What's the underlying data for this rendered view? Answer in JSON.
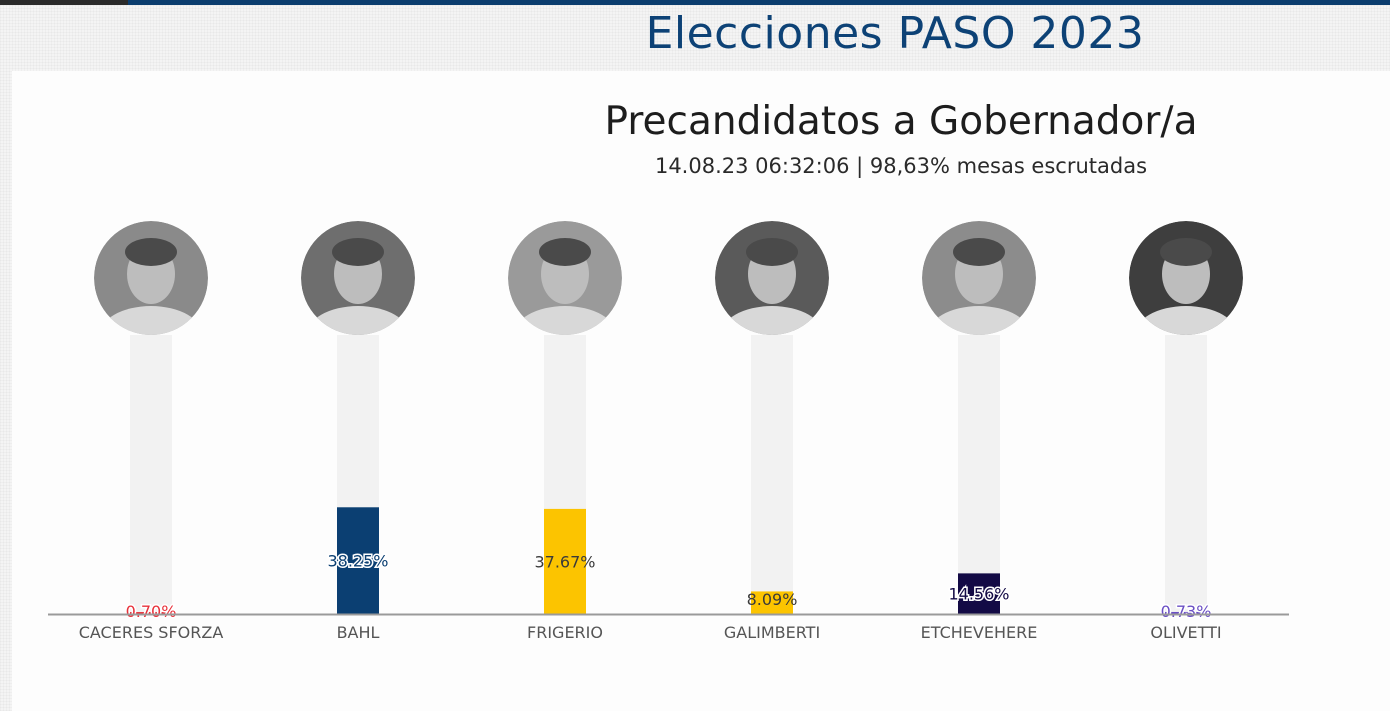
{
  "header": {
    "title": "Elecciones PASO 2023"
  },
  "chart_data": {
    "type": "bar",
    "title": "Precandidatos a Gobernador/a",
    "subtitle": "14.08.23 06:32:06 | 98,63% mesas escrutadas",
    "categories": [
      "CACERES SFORZA",
      "BAHL",
      "FRIGERIO",
      "GALIMBERTI",
      "ETCHEVEHERE",
      "OLIVETTI"
    ],
    "values": [
      0.7,
      38.25,
      37.67,
      8.09,
      14.56,
      0.73
    ],
    "value_labels": [
      "0.70%",
      "38.25%",
      "37.67%",
      "8.09%",
      "14.56%",
      "0.73%"
    ],
    "ylim": [
      0,
      100
    ],
    "colors": [
      "#e8313a",
      "#0b3f72",
      "#fcc400",
      "#fcc400",
      "#130a45",
      "#6a4fc4"
    ],
    "label_colors": [
      "#e8313a",
      "#0b3f72",
      "#3a3a3a",
      "#3a3a3a",
      "#130a45",
      "#6a4fc4"
    ],
    "label_outlined": [
      true,
      true,
      false,
      false,
      true,
      true
    ],
    "avatar_icons": [
      "person-photo-icon",
      "person-photo-icon",
      "person-photo-icon",
      "person-photo-icon",
      "person-photo-icon",
      "person-photo-icon"
    ],
    "avatar_tones": [
      "#8a8a8a",
      "#6e6e6e",
      "#9a9a9a",
      "#5a5a5a",
      "#8c8c8c",
      "#3e3e3e"
    ],
    "track_color": "#f2f2f2",
    "baseline_color": "#9a9a9a",
    "grid": false,
    "legend": "none"
  }
}
